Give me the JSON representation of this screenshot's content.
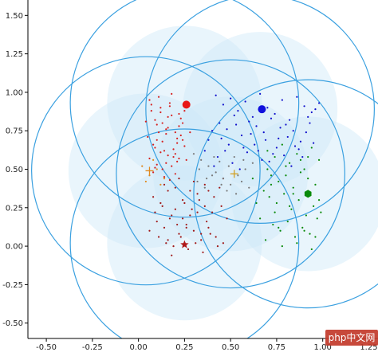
{
  "chart_data": {
    "type": "scatter",
    "title": "",
    "xlabel": "",
    "ylabel": "",
    "xlim": [
      -0.6,
      1.3
    ],
    "ylim": [
      -0.6,
      1.6
    ],
    "xticks": [
      "-0.50",
      "-0.25",
      "0.00",
      "0.25",
      "0.50",
      "0.75",
      "1.00",
      "1.25"
    ],
    "xtick_values": [
      -0.5,
      -0.25,
      0.0,
      0.25,
      0.5,
      0.75,
      1.0,
      1.25
    ],
    "yticks": [
      "-0.50",
      "-0.25",
      "0.00",
      "0.25",
      "0.50",
      "0.75",
      "1.00",
      "1.25",
      "1.50"
    ],
    "ytick_values": [
      -0.5,
      -0.25,
      0.0,
      0.25,
      0.5,
      0.75,
      1.0,
      1.25,
      1.5
    ],
    "grid": false,
    "colors": {
      "circle_stroke": "#3aa0e0",
      "circle_fill": "#cfe8f8",
      "red": "#d62020",
      "blue": "#1010cc",
      "green": "#0a8a0a",
      "darkred": "#a01818",
      "gray": "#7a7a7a",
      "orange": "#e08a20",
      "gold": "#d4a020"
    },
    "large_circles": [
      {
        "cx": 0.25,
        "cy": 0.93,
        "r": 0.62
      },
      {
        "cx": 0.66,
        "cy": 0.89,
        "r": 0.62
      },
      {
        "cx": 0.04,
        "cy": 0.49,
        "r": 0.62
      },
      {
        "cx": 0.92,
        "cy": 0.34,
        "r": 0.62
      },
      {
        "cx": 0.25,
        "cy": 0.02,
        "r": 0.62
      },
      {
        "cx": 0.5,
        "cy": 0.47,
        "r": 0.62
      }
    ],
    "shaded_circles": [
      {
        "cx": 0.25,
        "cy": 0.93,
        "r": 0.42
      },
      {
        "cx": 0.66,
        "cy": 0.89,
        "r": 0.42
      },
      {
        "cx": 0.04,
        "cy": 0.49,
        "r": 0.42
      },
      {
        "cx": 0.92,
        "cy": 0.34,
        "r": 0.42
      },
      {
        "cx": 0.25,
        "cy": 0.02,
        "r": 0.42
      },
      {
        "cx": 0.5,
        "cy": 0.47,
        "r": 0.42
      }
    ],
    "center_markers": [
      {
        "name": "red-center",
        "shape": "circle",
        "color": "#e81818",
        "x": 0.26,
        "y": 0.92
      },
      {
        "name": "blue-center",
        "shape": "circle",
        "color": "#1010dd",
        "x": 0.67,
        "y": 0.89
      },
      {
        "name": "green-center",
        "shape": "hexagon",
        "color": "#0a8a0a",
        "x": 0.92,
        "y": 0.34
      },
      {
        "name": "darkred-center",
        "shape": "star",
        "color": "#b01818",
        "x": 0.25,
        "y": 0.01
      },
      {
        "name": "orange-center",
        "shape": "plus",
        "color": "#e08a20",
        "x": 0.06,
        "y": 0.49
      },
      {
        "name": "gold-center",
        "shape": "plus",
        "color": "#d4a020",
        "x": 0.52,
        "y": 0.47
      }
    ],
    "series": [
      {
        "color": "#d62020",
        "x": [
          0.06,
          0.09,
          0.12,
          0.15,
          0.18,
          0.21,
          0.24,
          0.08,
          0.11,
          0.14,
          0.17,
          0.2,
          0.23,
          0.26,
          0.07,
          0.1,
          0.13,
          0.16,
          0.19,
          0.22,
          0.05,
          0.09,
          0.13,
          0.17,
          0.21,
          0.25,
          0.08,
          0.12,
          0.16,
          0.2,
          0.24,
          0.1,
          0.14,
          0.18,
          0.22,
          0.06,
          0.11,
          0.15,
          0.19,
          0.23,
          0.09,
          0.13,
          0.17,
          0.21,
          0.12,
          0.16,
          0.2,
          0.07,
          0.18,
          0.25,
          0.28,
          0.15,
          0.04,
          0.1,
          0.22
        ],
        "y": [
          0.95,
          0.82,
          0.9,
          0.76,
          0.85,
          0.7,
          0.8,
          0.66,
          0.74,
          0.62,
          0.93,
          0.6,
          0.72,
          0.56,
          0.88,
          0.53,
          0.68,
          0.84,
          0.58,
          0.78,
          0.71,
          0.64,
          0.5,
          0.91,
          0.55,
          0.65,
          0.48,
          0.87,
          0.59,
          0.74,
          0.69,
          0.79,
          0.45,
          0.52,
          0.86,
          0.57,
          0.97,
          0.73,
          0.63,
          0.83,
          0.51,
          0.8,
          0.43,
          0.67,
          0.61,
          0.77,
          0.47,
          0.92,
          0.99,
          0.88,
          0.74,
          0.54,
          0.81,
          0.69,
          0.57
        ]
      },
      {
        "color": "#1010cc",
        "x": [
          0.42,
          0.46,
          0.5,
          0.54,
          0.58,
          0.62,
          0.66,
          0.7,
          0.74,
          0.78,
          0.82,
          0.86,
          0.9,
          0.94,
          0.98,
          0.44,
          0.48,
          0.52,
          0.56,
          0.6,
          0.64,
          0.68,
          0.72,
          0.76,
          0.8,
          0.84,
          0.88,
          0.92,
          0.96,
          0.4,
          0.45,
          0.49,
          0.53,
          0.57,
          0.61,
          0.65,
          0.69,
          0.73,
          0.77,
          0.81,
          0.85,
          0.89,
          0.93,
          0.38,
          0.43,
          0.51,
          0.59,
          0.67,
          0.75,
          0.83,
          0.91,
          0.47,
          0.55,
          0.63,
          0.71,
          0.79,
          0.87,
          0.95,
          0.36,
          0.41
        ],
        "y": [
          0.98,
          0.92,
          0.96,
          0.88,
          0.94,
          0.84,
          0.99,
          0.9,
          0.86,
          0.95,
          0.82,
          0.97,
          0.91,
          0.87,
          0.93,
          0.8,
          0.76,
          0.85,
          0.72,
          0.81,
          0.78,
          0.74,
          0.83,
          0.7,
          0.79,
          0.75,
          0.68,
          0.84,
          0.89,
          0.75,
          0.7,
          0.66,
          0.79,
          0.64,
          0.73,
          0.62,
          0.69,
          0.6,
          0.77,
          0.71,
          0.65,
          0.58,
          0.8,
          0.69,
          0.58,
          0.54,
          0.61,
          0.56,
          0.64,
          0.52,
          0.74,
          0.62,
          0.5,
          0.66,
          0.55,
          0.59,
          0.63,
          0.67,
          0.62,
          0.52
        ]
      },
      {
        "color": "#0a8a0a",
        "x": [
          0.7,
          0.74,
          0.78,
          0.82,
          0.86,
          0.9,
          0.94,
          0.98,
          0.72,
          0.76,
          0.8,
          0.84,
          0.88,
          0.92,
          0.96,
          0.68,
          0.71,
          0.75,
          0.79,
          0.83,
          0.87,
          0.91,
          0.95,
          0.99,
          0.66,
          0.73,
          0.77,
          0.81,
          0.85,
          0.89,
          0.93,
          0.97,
          0.69,
          0.78,
          0.86,
          0.94,
          0.74,
          0.82,
          0.9,
          0.98,
          0.7,
          0.8,
          0.88,
          0.96,
          0.76,
          0.84,
          0.92,
          0.72,
          0.64,
          0.62
        ],
        "y": [
          0.62,
          0.58,
          0.66,
          0.54,
          0.6,
          0.5,
          0.64,
          0.56,
          0.46,
          0.42,
          0.52,
          0.38,
          0.48,
          0.44,
          0.4,
          0.36,
          0.32,
          0.28,
          0.34,
          0.24,
          0.3,
          0.2,
          0.26,
          0.22,
          0.18,
          0.14,
          0.1,
          0.16,
          0.06,
          0.12,
          0.08,
          0.18,
          0.04,
          0.0,
          0.02,
          -0.02,
          0.22,
          0.26,
          0.1,
          0.3,
          0.5,
          0.46,
          0.56,
          0.06,
          0.12,
          0.34,
          0.58,
          0.4,
          0.28,
          0.44
        ]
      },
      {
        "color": "#a01818",
        "x": [
          0.08,
          0.12,
          0.16,
          0.2,
          0.24,
          0.28,
          0.32,
          0.36,
          0.4,
          0.44,
          0.48,
          0.1,
          0.14,
          0.18,
          0.22,
          0.26,
          0.3,
          0.34,
          0.38,
          0.42,
          0.46,
          0.06,
          0.11,
          0.15,
          0.19,
          0.23,
          0.27,
          0.31,
          0.35,
          0.39,
          0.43,
          0.09,
          0.13,
          0.17,
          0.21,
          0.25,
          0.29,
          0.33,
          0.37,
          0.41,
          0.45,
          0.14,
          0.22,
          0.3,
          0.38,
          0.46,
          0.18,
          0.26,
          0.34,
          0.2,
          0.28,
          0.36,
          0.16,
          0.24,
          0.32
        ],
        "y": [
          0.32,
          0.28,
          0.36,
          0.24,
          0.3,
          0.2,
          0.34,
          0.26,
          0.22,
          0.38,
          0.18,
          0.16,
          0.12,
          0.2,
          0.08,
          0.14,
          0.1,
          0.04,
          0.12,
          0.06,
          0.02,
          0.1,
          0.06,
          0.02,
          0.0,
          0.06,
          -0.02,
          0.02,
          -0.04,
          0.08,
          0.0,
          0.22,
          0.26,
          0.18,
          0.14,
          0.28,
          0.24,
          0.3,
          0.16,
          0.32,
          0.26,
          0.4,
          0.44,
          0.42,
          0.36,
          0.44,
          -0.06,
          0.12,
          0.08,
          0.38,
          0.36,
          0.4,
          0.04,
          0.18,
          0.22
        ]
      },
      {
        "color": "#7a7a7a",
        "x": [
          0.3,
          0.34,
          0.38,
          0.42,
          0.46,
          0.5,
          0.54,
          0.58,
          0.62,
          0.32,
          0.36,
          0.4,
          0.44,
          0.48,
          0.52,
          0.56,
          0.6,
          0.33,
          0.37,
          0.41,
          0.45,
          0.49,
          0.53,
          0.57
        ],
        "y": [
          0.6,
          0.56,
          0.52,
          0.48,
          0.44,
          0.4,
          0.46,
          0.5,
          0.54,
          0.42,
          0.38,
          0.46,
          0.55,
          0.36,
          0.58,
          0.42,
          0.38,
          0.5,
          0.44,
          0.58,
          0.4,
          0.52,
          0.34,
          0.56
        ]
      },
      {
        "color": "#e08a20",
        "x": [
          0.02,
          0.06,
          0.1,
          0.14,
          0.04,
          0.08,
          0.12
        ],
        "y": [
          0.52,
          0.46,
          0.5,
          0.44,
          0.42,
          0.56,
          0.4
        ]
      }
    ]
  },
  "watermark": {
    "text": "php中文网"
  }
}
